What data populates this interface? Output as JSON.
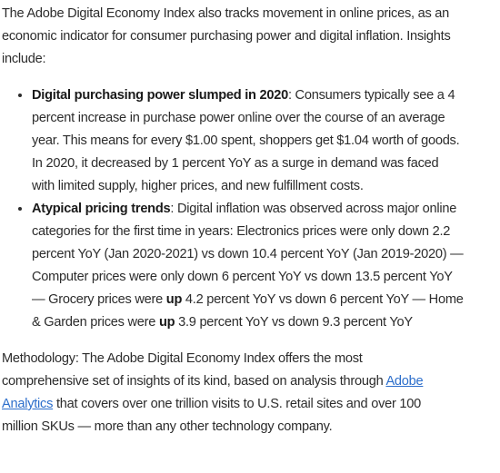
{
  "intro": "The Adobe Digital Economy Index also tracks movement in online prices, as an economic indicator for consumer purchasing power and digital inflation. Insights include:",
  "insights": [
    {
      "heading": "Digital purchasing power slumped in 2020",
      "segments": [
        ": Consumers typically see a 4 percent increase in purchase power online over the course of an average year. This means for every $1.00 spent, shoppers get $1.04 worth of goods. In 2020, it decreased by 1 percent YoY as a surge in demand was faced with limited supply, higher prices, and new fulfillment costs."
      ]
    },
    {
      "heading": "Atypical pricing trends",
      "segments": [
        ": Digital inflation was observed across major online categories for the first time in years: Electronics prices were only down 2.2 percent YoY (Jan 2020-2021) vs down 10.4 percent YoY (Jan 2019-2020) — Computer prices were only down 6 percent YoY vs down 13.5 percent YoY — Grocery prices were ",
        "up",
        " 4.2 percent YoY vs down 6 percent YoY — Home & Garden prices were ",
        "up",
        " 3.9 percent YoY vs down 9.3 percent YoY"
      ]
    }
  ],
  "methodology": {
    "before": "Methodology: The Adobe Digital Economy Index offers the most comprehensive set of insights of its kind, based on analysis through ",
    "link": "Adobe Analytics",
    "after": " that covers over one trillion visits to U.S. retail sites and over 100 million SKUs — more than any other technology company."
  }
}
